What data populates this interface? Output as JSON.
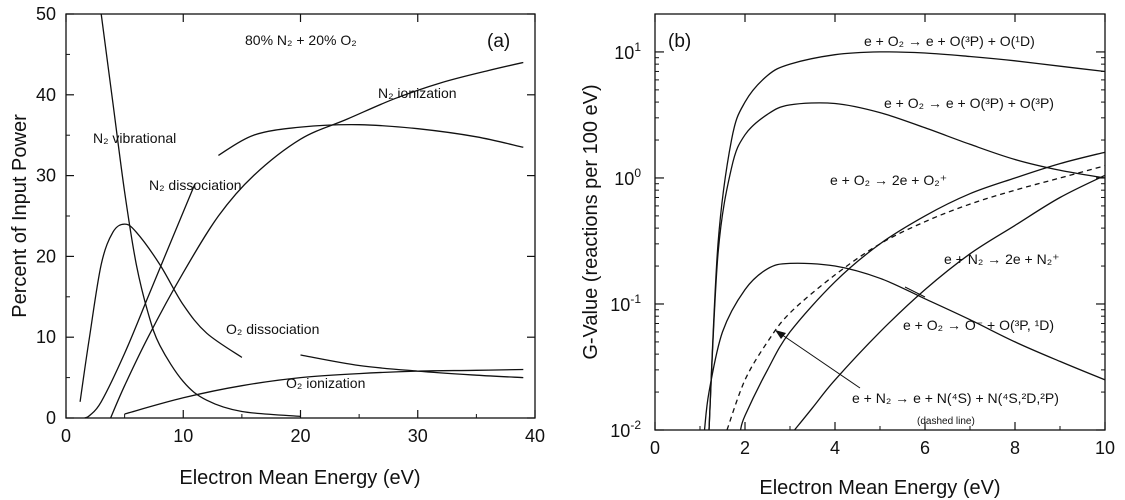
{
  "chart_data": [
    {
      "panel": "(a)",
      "type": "line",
      "title": "80% N₂ + 20% O₂",
      "xlabel": "Electron Mean Energy (eV)",
      "ylabel": "Percent of Input Power",
      "xlim": [
        0,
        40
      ],
      "ylim": [
        0,
        50
      ],
      "xticks": [
        "0",
        "10",
        "20",
        "30",
        "40"
      ],
      "yticks": [
        "0",
        "10",
        "20",
        "30",
        "40",
        "50"
      ],
      "grid": false,
      "series": [
        {
          "name": "N₂ vibrational",
          "x": [
            3,
            4,
            5,
            6,
            7,
            8,
            10,
            12,
            15,
            20
          ],
          "y": [
            50,
            39,
            28,
            19,
            13,
            9,
            4.5,
            2.2,
            0.8,
            0.2
          ]
        },
        {
          "name": "N₂ dissociation",
          "x": [
            1.6,
            2,
            3,
            5,
            7,
            9,
            11
          ],
          "y": [
            0,
            0.3,
            2,
            8,
            15,
            22,
            29
          ]
        },
        {
          "name": "O₂ dissociation",
          "x": [
            1.2,
            2,
            3,
            4,
            5,
            6,
            8,
            10,
            12,
            15
          ],
          "y": [
            2,
            10,
            19,
            23,
            24,
            23,
            19,
            14,
            10.5,
            7.5
          ]
        },
        {
          "name": "N₂ ionization",
          "x": [
            3.8,
            5,
            7,
            10,
            13,
            16,
            20,
            24,
            28,
            32,
            36,
            39
          ],
          "y": [
            0,
            4,
            10,
            18,
            25,
            30,
            34.5,
            37,
            39.5,
            41.5,
            43,
            44
          ]
        },
        {
          "name": "",
          "x": [
            13,
            16,
            20,
            25,
            30,
            35,
            39
          ],
          "y": [
            32.5,
            35,
            36,
            36.3,
            35.8,
            34.8,
            33.5
          ]
        },
        {
          "name": "O₂ ionization",
          "x": [
            5,
            10,
            15,
            20,
            25,
            30,
            35,
            39
          ],
          "y": [
            0.5,
            2.5,
            4,
            5,
            5.5,
            5.8,
            5.9,
            6
          ]
        },
        {
          "name": "",
          "x": [
            20,
            25,
            30,
            35,
            39
          ],
          "y": [
            7.8,
            6.5,
            5.8,
            5.3,
            5
          ]
        }
      ]
    },
    {
      "panel": "(b)",
      "type": "line",
      "xlabel": "Electron Mean Energy (eV)",
      "ylabel": "G-Value (reactions per 100 eV)",
      "xlim": [
        0,
        10
      ],
      "ylim": [
        0.01,
        20
      ],
      "yscale": "log",
      "xticks": [
        "0",
        "2",
        "4",
        "6",
        "8",
        "10"
      ],
      "grid": false,
      "series": [
        {
          "name": "e + O₂ → e + O(³P) + O(¹D)",
          "x": [
            1.2,
            1.4,
            1.7,
            2,
            2.5,
            3,
            4,
            5,
            6,
            7,
            8,
            9,
            10
          ],
          "y": [
            0.01,
            0.3,
            2,
            4,
            6.5,
            8,
            9.5,
            10,
            9.8,
            9.2,
            8.5,
            7.7,
            7
          ]
        },
        {
          "name": "e + O₂ → e + O(³P) + O(³P)",
          "x": [
            1.2,
            1.4,
            1.7,
            2,
            2.5,
            3,
            4,
            5,
            6,
            7,
            8,
            9,
            10
          ],
          "y": [
            0.01,
            0.25,
            1.2,
            2.2,
            3.2,
            3.8,
            3.9,
            3.3,
            2.5,
            1.85,
            1.4,
            1.15,
            1.0
          ]
        },
        {
          "name": "e + O₂ → 2e + O₂⁺",
          "x": [
            1.9,
            2,
            2.5,
            3,
            4,
            5,
            6,
            7,
            8,
            9,
            10
          ],
          "y": [
            0.01,
            0.013,
            0.03,
            0.06,
            0.15,
            0.3,
            0.5,
            0.75,
            1.0,
            1.3,
            1.6
          ]
        },
        {
          "name": "e + N₂ → 2e + N₂⁺",
          "x": [
            3.1,
            3.5,
            4,
            5,
            6,
            7,
            8,
            9,
            10
          ],
          "y": [
            0.01,
            0.015,
            0.025,
            0.06,
            0.13,
            0.25,
            0.42,
            0.7,
            1.05
          ]
        },
        {
          "name": "e + O₂ → O⁻ + O(³P, ¹D)",
          "x": [
            1.1,
            1.2,
            1.5,
            2,
            2.5,
            3,
            4,
            5,
            6,
            7,
            8,
            9,
            10
          ],
          "y": [
            0.01,
            0.02,
            0.06,
            0.13,
            0.19,
            0.21,
            0.2,
            0.16,
            0.11,
            0.075,
            0.05,
            0.035,
            0.025
          ]
        },
        {
          "name": "e + N₂ → e + N(⁴S) + N(⁴S,²D,²P)",
          "x": [
            1.6,
            2,
            2.5,
            3,
            4,
            5,
            6,
            7,
            8,
            9,
            10
          ],
          "y": [
            0.01,
            0.025,
            0.05,
            0.085,
            0.17,
            0.3,
            0.45,
            0.62,
            0.8,
            1.0,
            1.25
          ]
        }
      ]
    }
  ],
  "annotations_a": {
    "panel_tag": "(a)",
    "mixture": "80% N₂ + 20% O₂",
    "n2_vib": "N₂ vibrational",
    "n2_diss": "N₂ dissociation",
    "n2_ion": "N₂ ionization",
    "o2_diss": "O₂ dissociation",
    "o2_ion": "O₂ ionization"
  },
  "annotations_b": {
    "panel_tag": "(b)",
    "r1": "e + O₂ → e + O(³P) + O(¹D)",
    "r2": "e + O₂ → e + O(³P) + O(³P)",
    "r3": "e + O₂ → 2e + O₂⁺",
    "r4": "e + N₂ → 2e + N₂⁺",
    "r5": "e + O₂ → O⁻ + O(³P, ¹D)",
    "r6": "e + N₂ → e + N(⁴S) + N(⁴S,²D,²P)",
    "r6_note": "(dashed line)"
  },
  "tick_b_y": [
    {
      "base": "10",
      "exp": "1",
      "v": 10
    },
    {
      "base": "10",
      "exp": "0",
      "v": 1
    },
    {
      "base": "10",
      "exp": "-1",
      "v": 0.1
    },
    {
      "base": "10",
      "exp": "-2",
      "v": 0.01
    }
  ]
}
